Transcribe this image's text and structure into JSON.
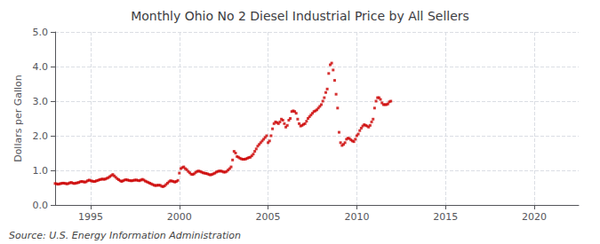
{
  "chart_data": {
    "type": "scatter",
    "title": "Monthly Ohio No 2 Diesel Industrial Price by All Sellers",
    "ylabel": "Dollars per Gallon",
    "annotations": [
      "Source: U.S. Energy Information Administration"
    ],
    "color": "#cc0000",
    "marker": "square",
    "grid": true,
    "xlim": [
      1993.0,
      2022.5
    ],
    "ylim": [
      0.0,
      5.0
    ],
    "xticks": [
      1995,
      2000,
      2005,
      2010,
      2015,
      2020
    ],
    "yticks": [
      {
        "value": 0.0,
        "label": "0.0"
      },
      {
        "value": 1.0,
        "label": "1.0"
      },
      {
        "value": 2.0,
        "label": "2.0"
      },
      {
        "value": 3.0,
        "label": "3.0"
      },
      {
        "value": 4.0,
        "label": "4.0"
      },
      {
        "value": 5.0,
        "label": "5.0"
      }
    ],
    "x": [
      1993.0,
      1993.083,
      1993.167,
      1993.25,
      1993.333,
      1993.417,
      1993.5,
      1993.583,
      1993.667,
      1993.75,
      1993.833,
      1993.917,
      1994.0,
      1994.083,
      1994.167,
      1994.25,
      1994.333,
      1994.417,
      1994.5,
      1994.583,
      1994.667,
      1994.75,
      1994.833,
      1994.917,
      1995.0,
      1995.083,
      1995.167,
      1995.25,
      1995.333,
      1995.417,
      1995.5,
      1995.583,
      1995.667,
      1995.75,
      1995.833,
      1995.917,
      1996.0,
      1996.083,
      1996.167,
      1996.25,
      1996.333,
      1996.417,
      1996.5,
      1996.583,
      1996.667,
      1996.75,
      1996.833,
      1996.917,
      1997.0,
      1997.083,
      1997.167,
      1997.25,
      1997.333,
      1997.417,
      1997.5,
      1997.583,
      1997.667,
      1997.75,
      1997.833,
      1997.917,
      1998.0,
      1998.083,
      1998.167,
      1998.25,
      1998.333,
      1998.417,
      1998.5,
      1998.583,
      1998.667,
      1998.75,
      1998.833,
      1998.917,
      1999.0,
      1999.083,
      1999.167,
      1999.25,
      1999.333,
      1999.417,
      1999.5,
      1999.583,
      1999.667,
      1999.75,
      1999.833,
      1999.917,
      2000.0,
      2000.083,
      2000.167,
      2000.25,
      2000.333,
      2000.417,
      2000.5,
      2000.583,
      2000.667,
      2000.75,
      2000.833,
      2000.917,
      2001.0,
      2001.083,
      2001.167,
      2001.25,
      2001.333,
      2001.417,
      2001.5,
      2001.583,
      2001.667,
      2001.75,
      2001.833,
      2001.917,
      2002.0,
      2002.083,
      2002.167,
      2002.25,
      2002.333,
      2002.417,
      2002.5,
      2002.583,
      2002.667,
      2002.75,
      2002.833,
      2002.917,
      2003.0,
      2003.083,
      2003.167,
      2003.25,
      2003.333,
      2003.417,
      2003.5,
      2003.583,
      2003.667,
      2003.75,
      2003.833,
      2003.917,
      2004.0,
      2004.083,
      2004.167,
      2004.25,
      2004.333,
      2004.417,
      2004.5,
      2004.583,
      2004.667,
      2004.75,
      2004.833,
      2004.917,
      2005.0,
      2005.083,
      2005.167,
      2005.25,
      2005.333,
      2005.417,
      2005.5,
      2005.583,
      2005.667,
      2005.75,
      2005.833,
      2005.917,
      2006.0,
      2006.083,
      2006.167,
      2006.25,
      2006.333,
      2006.417,
      2006.5,
      2006.583,
      2006.667,
      2006.75,
      2006.833,
      2006.917,
      2007.0,
      2007.083,
      2007.167,
      2007.25,
      2007.333,
      2007.417,
      2007.5,
      2007.583,
      2007.667,
      2007.75,
      2007.833,
      2007.917,
      2008.0,
      2008.083,
      2008.167,
      2008.25,
      2008.333,
      2008.417,
      2008.5,
      2008.583,
      2008.667,
      2008.75,
      2008.833,
      2008.917,
      2009.0,
      2009.083,
      2009.167,
      2009.25,
      2009.333,
      2009.417,
      2009.5,
      2009.583,
      2009.667,
      2009.75,
      2009.833,
      2009.917,
      2010.0,
      2010.083,
      2010.167,
      2010.25,
      2010.333,
      2010.417,
      2010.5,
      2010.583,
      2010.667,
      2010.75,
      2010.833,
      2010.917,
      2011.0,
      2011.083,
      2011.167,
      2011.25,
      2011.333,
      2011.417,
      2011.5,
      2011.583,
      2011.667,
      2011.75,
      2011.833,
      2011.917
    ],
    "values": [
      0.62,
      0.61,
      0.6,
      0.61,
      0.62,
      0.63,
      0.63,
      0.62,
      0.61,
      0.62,
      0.64,
      0.65,
      0.63,
      0.62,
      0.63,
      0.64,
      0.65,
      0.67,
      0.68,
      0.67,
      0.66,
      0.67,
      0.7,
      0.72,
      0.7,
      0.69,
      0.68,
      0.68,
      0.7,
      0.71,
      0.73,
      0.74,
      0.75,
      0.74,
      0.75,
      0.77,
      0.79,
      0.82,
      0.85,
      0.88,
      0.84,
      0.8,
      0.76,
      0.73,
      0.7,
      0.68,
      0.7,
      0.72,
      0.73,
      0.72,
      0.71,
      0.7,
      0.7,
      0.71,
      0.72,
      0.72,
      0.71,
      0.7,
      0.72,
      0.74,
      0.72,
      0.69,
      0.67,
      0.65,
      0.63,
      0.61,
      0.59,
      0.57,
      0.56,
      0.57,
      0.57,
      0.57,
      0.54,
      0.53,
      0.55,
      0.59,
      0.63,
      0.67,
      0.7,
      0.69,
      0.68,
      0.66,
      0.68,
      0.71,
      0.92,
      1.05,
      1.08,
      1.1,
      1.05,
      1.02,
      0.97,
      0.93,
      0.89,
      0.88,
      0.9,
      0.94,
      0.97,
      0.98,
      0.97,
      0.95,
      0.93,
      0.92,
      0.91,
      0.9,
      0.88,
      0.87,
      0.88,
      0.9,
      0.92,
      0.95,
      0.97,
      0.98,
      0.98,
      0.97,
      0.95,
      0.95,
      0.97,
      1.01,
      1.05,
      1.1,
      1.3,
      1.55,
      1.5,
      1.4,
      1.38,
      1.35,
      1.33,
      1.32,
      1.32,
      1.33,
      1.35,
      1.37,
      1.38,
      1.42,
      1.47,
      1.55,
      1.62,
      1.7,
      1.75,
      1.8,
      1.85,
      1.9,
      1.95,
      2.0,
      1.8,
      1.85,
      2.0,
      2.2,
      2.35,
      2.4,
      2.38,
      2.35,
      2.4,
      2.48,
      2.45,
      2.35,
      2.25,
      2.3,
      2.45,
      2.5,
      2.7,
      2.72,
      2.7,
      2.65,
      2.48,
      2.35,
      2.28,
      2.3,
      2.33,
      2.35,
      2.42,
      2.5,
      2.55,
      2.6,
      2.65,
      2.7,
      2.72,
      2.75,
      2.8,
      2.85,
      2.9,
      3.0,
      3.1,
      3.25,
      3.35,
      3.8,
      4.05,
      4.1,
      3.9,
      3.6,
      3.2,
      2.8,
      2.1,
      1.8,
      1.72,
      1.75,
      1.8,
      1.9,
      1.93,
      1.92,
      1.88,
      1.85,
      1.83,
      1.9,
      2.0,
      2.05,
      2.15,
      2.22,
      2.28,
      2.32,
      2.3,
      2.28,
      2.25,
      2.3,
      2.4,
      2.48,
      2.8,
      3.0,
      3.1,
      3.1,
      3.05,
      2.95,
      2.9,
      2.9,
      2.9,
      2.92,
      2.98,
      3.0
    ]
  }
}
